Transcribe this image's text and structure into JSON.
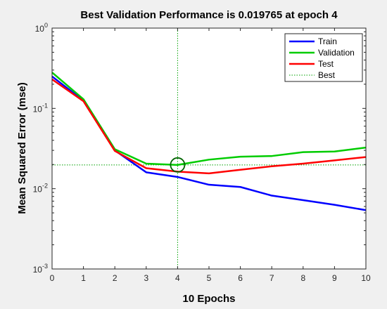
{
  "chart_data": {
    "type": "line",
    "title": "Best Validation Performance is 0.019765 at epoch 4",
    "xlabel": "10 Epochs",
    "ylabel": "Mean Squared Error  (mse)",
    "xlim": [
      0,
      10
    ],
    "ylim": [
      0.001,
      1
    ],
    "yscale": "log",
    "x_ticks": [
      "0",
      "1",
      "2",
      "3",
      "4",
      "5",
      "6",
      "7",
      "8",
      "9",
      "10"
    ],
    "y_ticks": [
      {
        "value": 0.001,
        "base": "10",
        "exp": "-3"
      },
      {
        "value": 0.01,
        "base": "10",
        "exp": "-2"
      },
      {
        "value": 0.1,
        "base": "10",
        "exp": "-1"
      },
      {
        "value": 1,
        "base": "10",
        "exp": "0"
      }
    ],
    "grid": false,
    "legend_position": "top-right",
    "x": [
      0,
      1,
      2,
      3,
      4,
      5,
      6,
      7,
      8,
      9,
      10
    ],
    "series": [
      {
        "name": "Train",
        "color": "#0000ff",
        "values": [
          0.25,
          0.125,
          0.03,
          0.016,
          0.014,
          0.0112,
          0.0105,
          0.0082,
          0.0072,
          0.0063,
          0.0054
        ]
      },
      {
        "name": "Validation",
        "color": "#00cc00",
        "values": [
          0.28,
          0.13,
          0.031,
          0.0205,
          0.019765,
          0.023,
          0.025,
          0.0255,
          0.0285,
          0.029,
          0.0325
        ]
      },
      {
        "name": "Test",
        "color": "#ff0000",
        "values": [
          0.23,
          0.123,
          0.0295,
          0.018,
          0.0163,
          0.0155,
          0.0172,
          0.019,
          0.0205,
          0.0225,
          0.0248
        ]
      }
    ],
    "best": {
      "name": "Best",
      "epoch": 4,
      "value": 0.019765,
      "color": "#00a000"
    }
  }
}
